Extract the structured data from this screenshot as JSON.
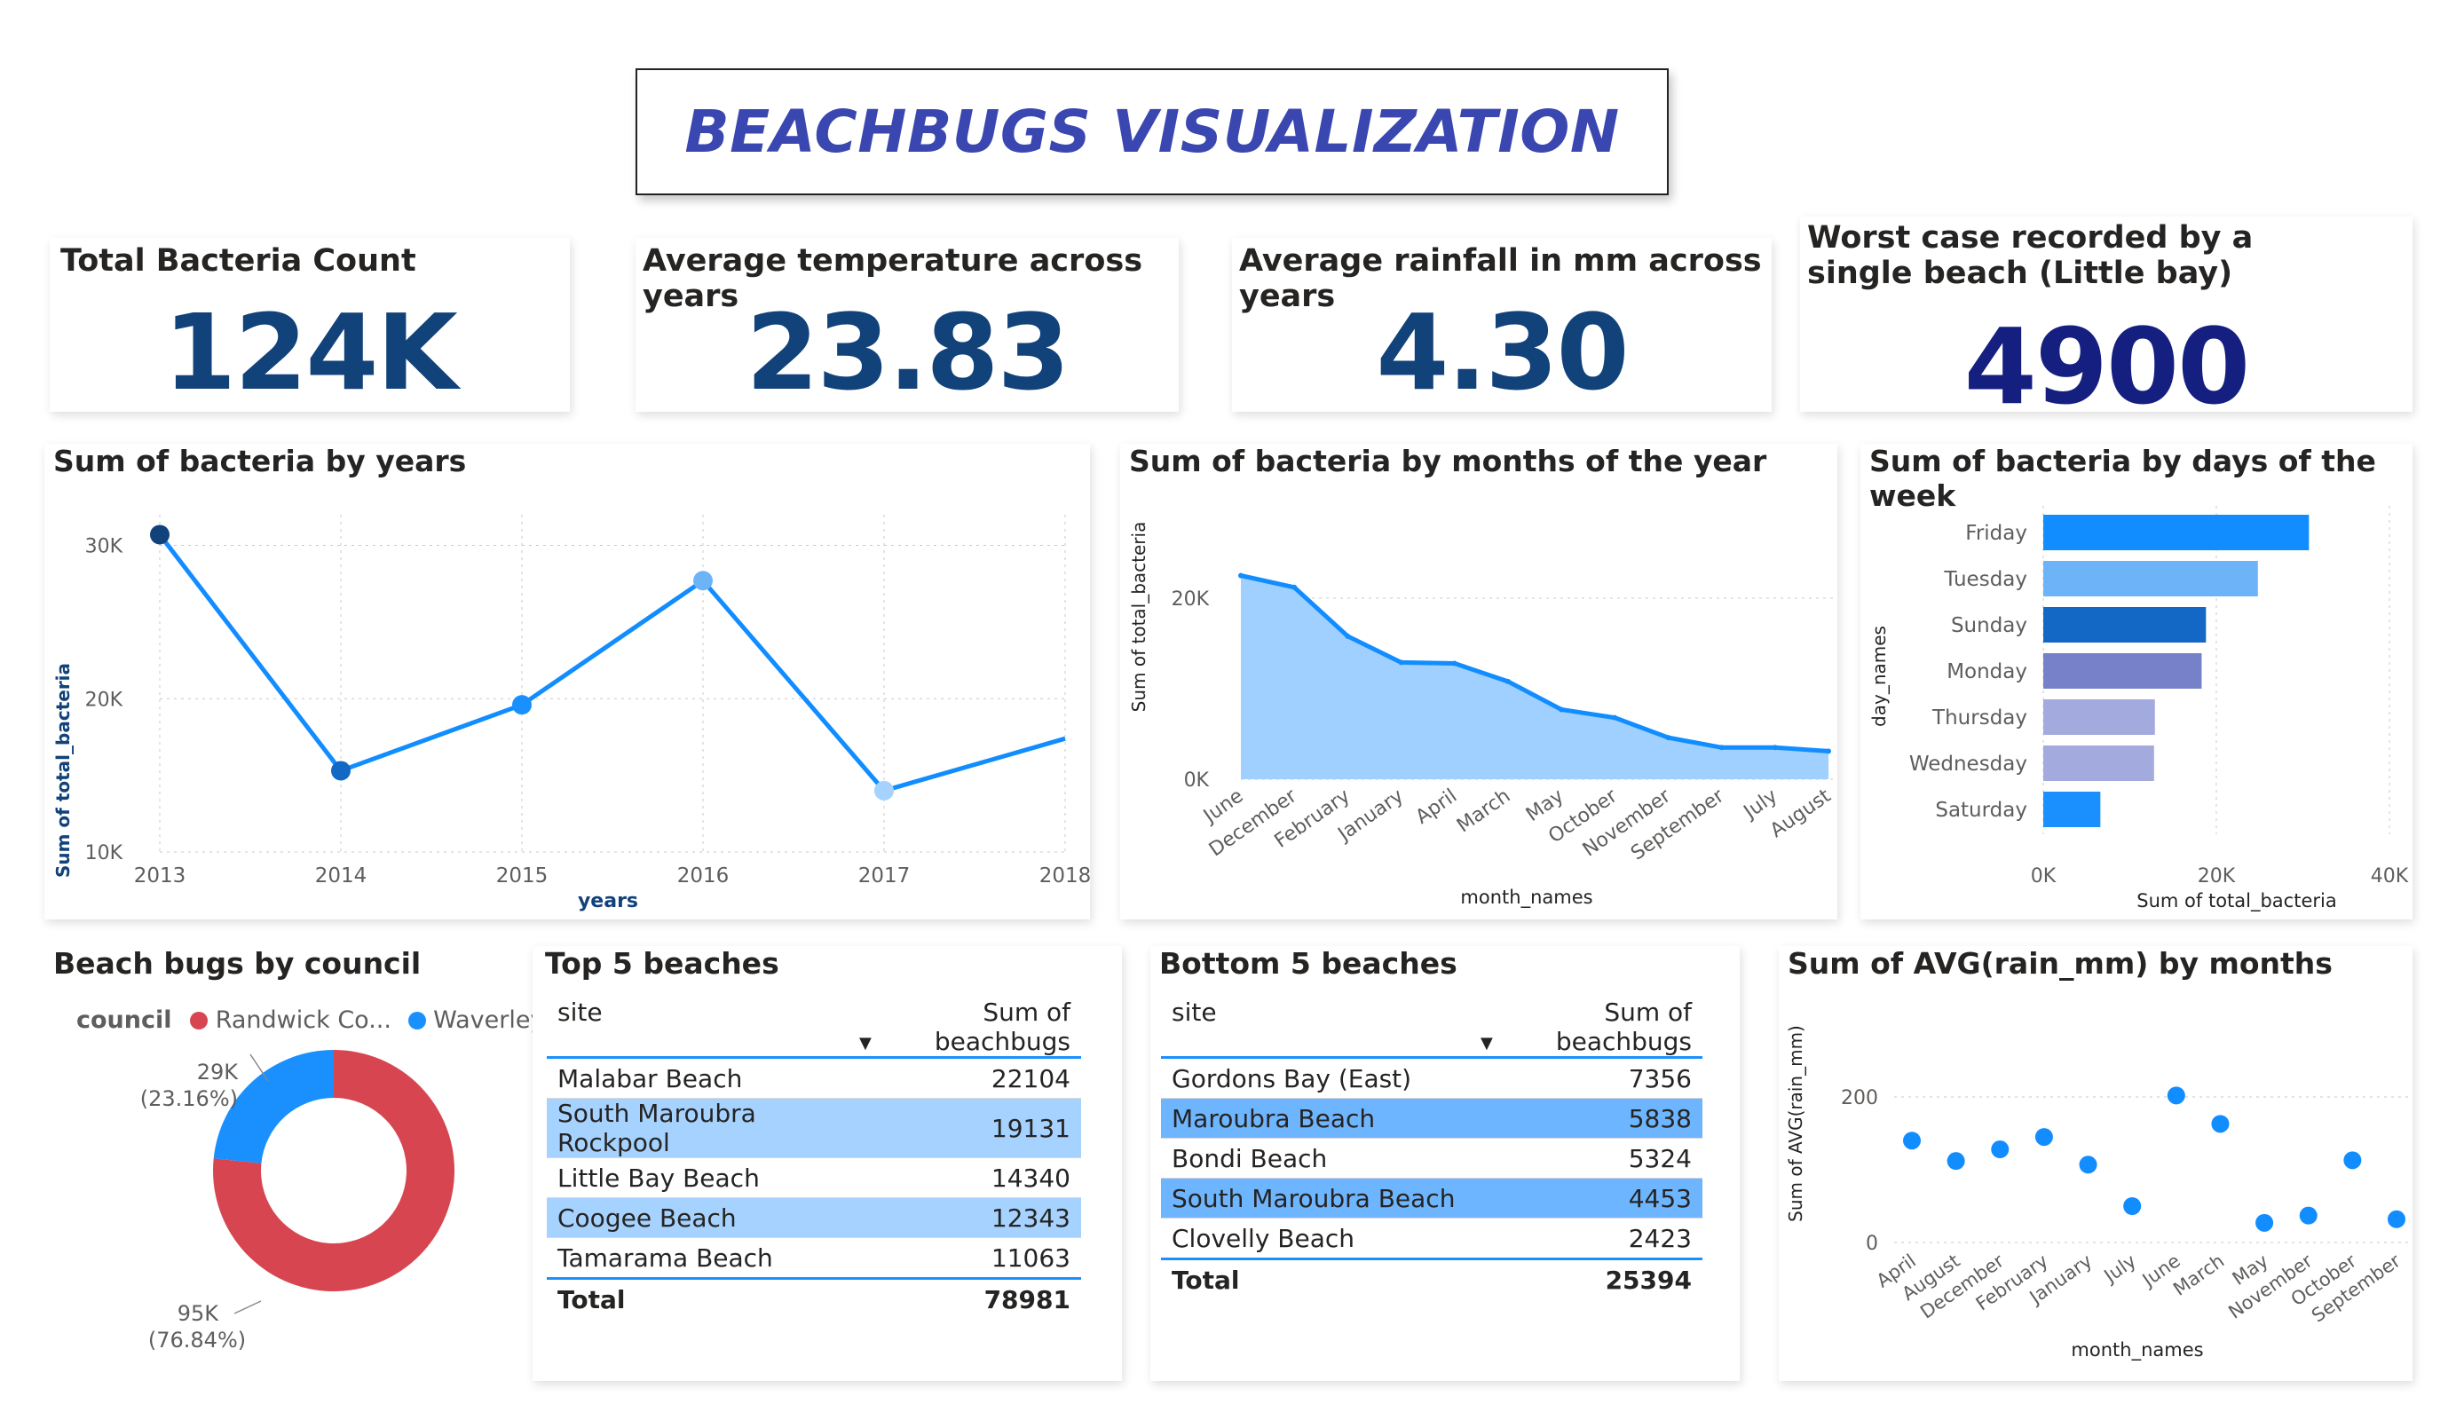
{
  "title": "BEACHBUGS VISUALIZATION",
  "kpis": [
    {
      "label": "Total Bacteria Count",
      "value": "124K",
      "color": "#12427a"
    },
    {
      "label": "Average temperature across years",
      "value": "23.83",
      "color": "#12427a"
    },
    {
      "label": "Average rainfall in mm across years",
      "value": "4.30",
      "color": "#12427a"
    },
    {
      "label": "Worst case recorded by a single beach (Little bay)",
      "value": "4900",
      "color": "#141f80"
    }
  ],
  "colors": {
    "primary": "#118dff",
    "dark_blue": "#12427a",
    "randwick": "#d64550",
    "waverley": "#1a90ff",
    "highlight": "#a6d2ff",
    "highlight_dark": "#6eb5ff"
  },
  "chart_data": [
    {
      "type": "line",
      "title": "Sum of bacteria by years",
      "xlabel": "years",
      "ylabel": "Sum of total_bacteria",
      "x": [
        "2013",
        "2014",
        "2015",
        "2016",
        "2017",
        "2018"
      ],
      "values": [
        30700,
        15300,
        19600,
        27700,
        14000,
        17400
      ],
      "ylim": [
        10000,
        32000
      ],
      "yticks": [
        "10K",
        "20K",
        "30K"
      ],
      "grid": true
    },
    {
      "type": "area",
      "title": "Sum of bacteria by months of the year",
      "xlabel": "month_names",
      "ylabel": "Sum of total_bacteria",
      "categories": [
        "June",
        "December",
        "February",
        "January",
        "April",
        "March",
        "May",
        "October",
        "November",
        "September",
        "July",
        "August"
      ],
      "values": [
        22500,
        21200,
        15800,
        12900,
        12800,
        10800,
        7700,
        6800,
        4600,
        3500,
        3500,
        3100
      ],
      "ylim": [
        0,
        24000
      ],
      "yticks": [
        "0K",
        "20K"
      ],
      "grid": true
    },
    {
      "type": "bar",
      "orientation": "horizontal",
      "title": "Sum of bacteria by days of the week",
      "xlabel": "Sum of total_bacteria",
      "ylabel": "day_names",
      "categories": [
        "Friday",
        "Tuesday",
        "Sunday",
        "Monday",
        "Thursday",
        "Wednesday",
        "Saturday"
      ],
      "values": [
        30700,
        24800,
        18800,
        18300,
        12900,
        12800,
        6600
      ],
      "bar_colors": [
        "#118dff",
        "#6cb4f7",
        "#1268c4",
        "#7681c9",
        "#a3aade",
        "#a3aade",
        "#1a90ff"
      ],
      "xlim": [
        0,
        40000
      ],
      "xticks": [
        "0K",
        "20K",
        "40K"
      ],
      "grid": true
    },
    {
      "type": "pie",
      "title": "Beach bugs by council",
      "legend_title": "council",
      "slices": [
        {
          "name": "Randwick Co...",
          "value": 95000,
          "label": "95K",
          "pct": "(76.84%)",
          "color": "#d64550"
        },
        {
          "name": "Waverley ...",
          "value": 29000,
          "label": "29K",
          "pct": "(23.16%)",
          "color": "#1a90ff"
        }
      ]
    },
    {
      "type": "scatter",
      "title": "Sum of AVG(rain_mm) by months",
      "xlabel": "month_names",
      "ylabel": "Sum of AVG(rain_mm)",
      "categories": [
        "April",
        "August",
        "December",
        "February",
        "January",
        "July",
        "June",
        "March",
        "May",
        "November",
        "October",
        "September"
      ],
      "values": [
        140,
        112,
        128,
        145,
        107,
        50,
        202,
        163,
        27,
        37,
        113,
        32
      ],
      "ylim": [
        0,
        220
      ],
      "yticks": [
        "0",
        "200"
      ],
      "grid": true
    }
  ],
  "tables": {
    "top5": {
      "title": "Top 5 beaches",
      "col_site": "site",
      "col_sum": "Sum of beachbugs",
      "rows": [
        {
          "site": "Malabar Beach",
          "value": "22104"
        },
        {
          "site": "South Maroubra Rockpool",
          "value": "19131"
        },
        {
          "site": "Little Bay Beach",
          "value": "14340"
        },
        {
          "site": "Coogee Beach",
          "value": "12343"
        },
        {
          "site": "Tamarama Beach",
          "value": "11063"
        }
      ],
      "total_label": "Total",
      "total_value": "78981"
    },
    "bottom5": {
      "title": "Bottom 5 beaches",
      "col_site": "site",
      "col_sum": "Sum of beachbugs",
      "rows": [
        {
          "site": "Gordons Bay (East)",
          "value": "7356"
        },
        {
          "site": "Maroubra Beach",
          "value": "5838"
        },
        {
          "site": "Bondi Beach",
          "value": "5324"
        },
        {
          "site": "South Maroubra Beach",
          "value": "4453"
        },
        {
          "site": "Clovelly Beach",
          "value": "2423"
        }
      ],
      "total_label": "Total",
      "total_value": "25394"
    }
  }
}
